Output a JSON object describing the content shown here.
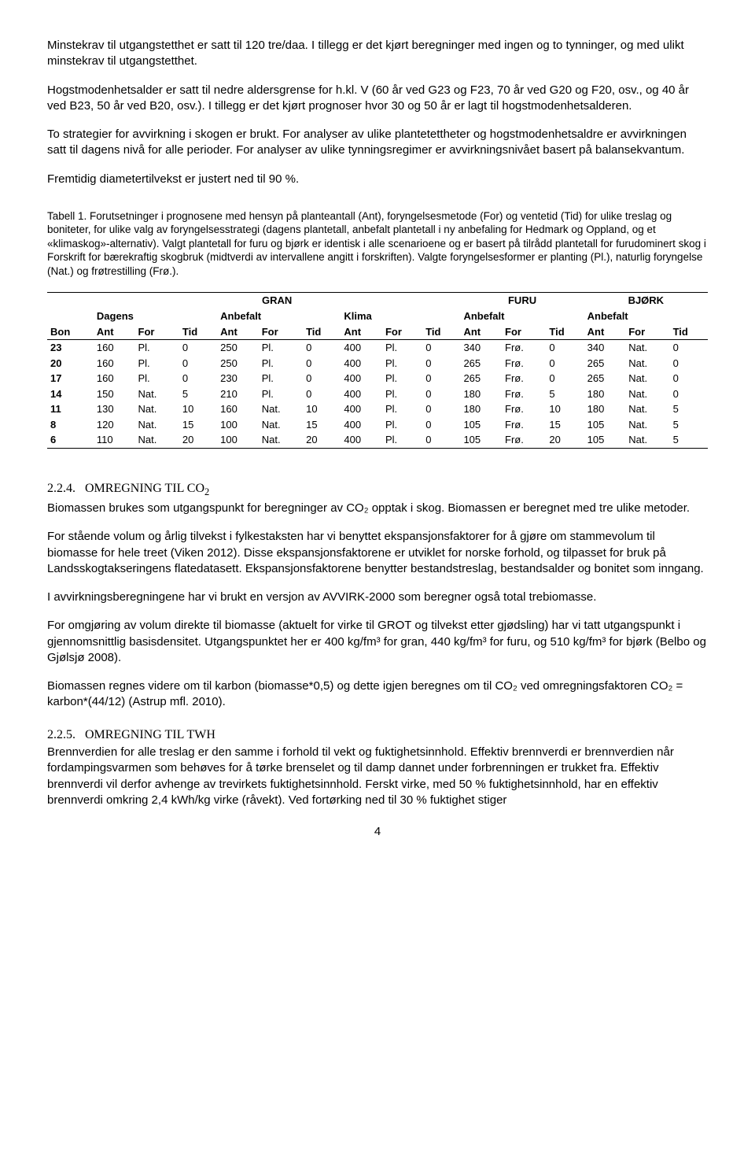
{
  "paragraphs": {
    "p1": "Minstekrav til utgangstetthet er satt til 120 tre/daa. I tillegg er det kjørt beregninger med ingen og to tynninger, og med ulikt minstekrav til utgangstetthet.",
    "p2": "Hogstmodenhetsalder er satt til nedre aldersgrense for h.kl. V (60 år ved G23 og F23, 70 år ved G20 og F20, osv., og 40 år ved B23, 50 år ved B20, osv.). I tillegg er det kjørt prognoser hvor 30 og 50 år er lagt til hogstmodenhetsalderen.",
    "p3": "To strategier for avvirkning i skogen er brukt. For analyser av ulike plantetettheter og hogstmodenhetsaldre er avvirkningen satt til dagens nivå for alle perioder. For analyser av ulike tynningsregimer er avvirkningsnivået basert på balansekvantum.",
    "p4": "Fremtidig diametertilvekst er justert ned til 90 %.",
    "caption": "Tabell 1. Forutsetninger i prognosene med hensyn på planteantall (Ant), foryngelsesmetode (For) og ventetid (Tid) for ulike treslag og boniteter, for ulike valg av foryngelsesstrategi (dagens plantetall, anbefalt plantetall i ny anbefaling for Hedmark og Oppland, og et «klimaskog»-alternativ). Valgt plantetall for furu og bjørk er identisk i alle scenarioene og er basert på tilrådd plantetall for furudominert skog i Forskrift for bærekraftig skogbruk (midtverdi av intervallene angitt i forskriften). Valgte foryngelsesformer er planting (Pl.), naturlig foryngelse (Nat.) og frøtrestilling (Frø.).",
    "p5": "Biomassen brukes som utgangspunkt for beregninger av CO₂ opptak i skog. Biomassen er beregnet med tre ulike metoder.",
    "p6": "For stående volum og årlig tilvekst i fylkestaksten har vi benyttet ekspansjonsfaktorer for å gjøre om stammevolum til biomasse for hele treet (Viken 2012). Disse ekspansjonsfaktorene er utviklet for norske forhold, og tilpasset for bruk på Landsskogtakseringens flatedatasett. Ekspansjonsfaktorene benytter bestandstreslag, bestandsalder og bonitet som inngang.",
    "p7": "I avvirkningsberegningene har vi brukt en versjon av AVVIRK-2000 som beregner også total trebiomasse.",
    "p8": "For omgjøring av volum direkte til biomasse (aktuelt for virke til GROT og tilvekst etter gjødsling) har vi tatt utgangspunkt i gjennomsnittlig basisdensitet. Utgangspunktet her er 400 kg/fm³ for gran, 440 kg/fm³ for furu, og 510 kg/fm³ for bjørk (Belbo og Gjølsjø 2008).",
    "p9": "Biomassen regnes videre om til karbon (biomasse*0,5) og dette igjen beregnes om til CO₂ ved omregningsfaktoren CO₂ = karbon*(44/12) (Astrup mfl. 2010).",
    "p10": "Brennverdien for alle treslag er den samme i forhold til vekt og fuktighetsinnhold. Effektiv brennverdi er brennverdien når fordampingsvarmen som behøves for å tørke brenselet og til damp dannet under forbrenningen er trukket fra. Effektiv brennverdi vil derfor avhenge av trevirkets fuktighetsinnhold. Ferskt virke, med 50 % fuktighetsinnhold, har en effektiv brennverdi omkring 2,4 kWh/kg virke (råvekt). Ved fortørking ned til 30 % fuktighet stiger"
  },
  "sections": {
    "s224_num": "2.2.4.",
    "s224_title": "OMREGNING TIL CO",
    "s224_sub": "2",
    "s225_num": "2.2.5.",
    "s225_title": "OMREGNING TIL TWH"
  },
  "table": {
    "group_headers": {
      "gran": "GRAN",
      "furu": "FURU",
      "bjork": "BJØRK"
    },
    "sub_headers": {
      "dagens": "Dagens",
      "anbefalt": "Anbefalt",
      "klima": "Klima"
    },
    "col_headers": {
      "bon": "Bon",
      "ant": "Ant",
      "for": "For",
      "tid": "Tid"
    },
    "rows": [
      {
        "bon": "23",
        "c": [
          [
            "160",
            "Pl.",
            "0"
          ],
          [
            "250",
            "Pl.",
            "0"
          ],
          [
            "400",
            "Pl.",
            "0"
          ],
          [
            "340",
            "Frø.",
            "0"
          ],
          [
            "340",
            "Nat.",
            "0"
          ]
        ]
      },
      {
        "bon": "20",
        "c": [
          [
            "160",
            "Pl.",
            "0"
          ],
          [
            "250",
            "Pl.",
            "0"
          ],
          [
            "400",
            "Pl.",
            "0"
          ],
          [
            "265",
            "Frø.",
            "0"
          ],
          [
            "265",
            "Nat.",
            "0"
          ]
        ]
      },
      {
        "bon": "17",
        "c": [
          [
            "160",
            "Pl.",
            "0"
          ],
          [
            "230",
            "Pl.",
            "0"
          ],
          [
            "400",
            "Pl.",
            "0"
          ],
          [
            "265",
            "Frø.",
            "0"
          ],
          [
            "265",
            "Nat.",
            "0"
          ]
        ]
      },
      {
        "bon": "14",
        "c": [
          [
            "150",
            "Nat.",
            "5"
          ],
          [
            "210",
            "Pl.",
            "0"
          ],
          [
            "400",
            "Pl.",
            "0"
          ],
          [
            "180",
            "Frø.",
            "5"
          ],
          [
            "180",
            "Nat.",
            "0"
          ]
        ]
      },
      {
        "bon": "11",
        "c": [
          [
            "130",
            "Nat.",
            "10"
          ],
          [
            "160",
            "Nat.",
            "10"
          ],
          [
            "400",
            "Pl.",
            "0"
          ],
          [
            "180",
            "Frø.",
            "10"
          ],
          [
            "180",
            "Nat.",
            "5"
          ]
        ]
      },
      {
        "bon": "8",
        "c": [
          [
            "120",
            "Nat.",
            "15"
          ],
          [
            "100",
            "Nat.",
            "15"
          ],
          [
            "400",
            "Pl.",
            "0"
          ],
          [
            "105",
            "Frø.",
            "15"
          ],
          [
            "105",
            "Nat.",
            "5"
          ]
        ]
      },
      {
        "bon": "6",
        "c": [
          [
            "110",
            "Nat.",
            "20"
          ],
          [
            "100",
            "Nat.",
            "20"
          ],
          [
            "400",
            "Pl.",
            "0"
          ],
          [
            "105",
            "Frø.",
            "20"
          ],
          [
            "105",
            "Nat.",
            "5"
          ]
        ]
      }
    ]
  },
  "pagenum": "4"
}
